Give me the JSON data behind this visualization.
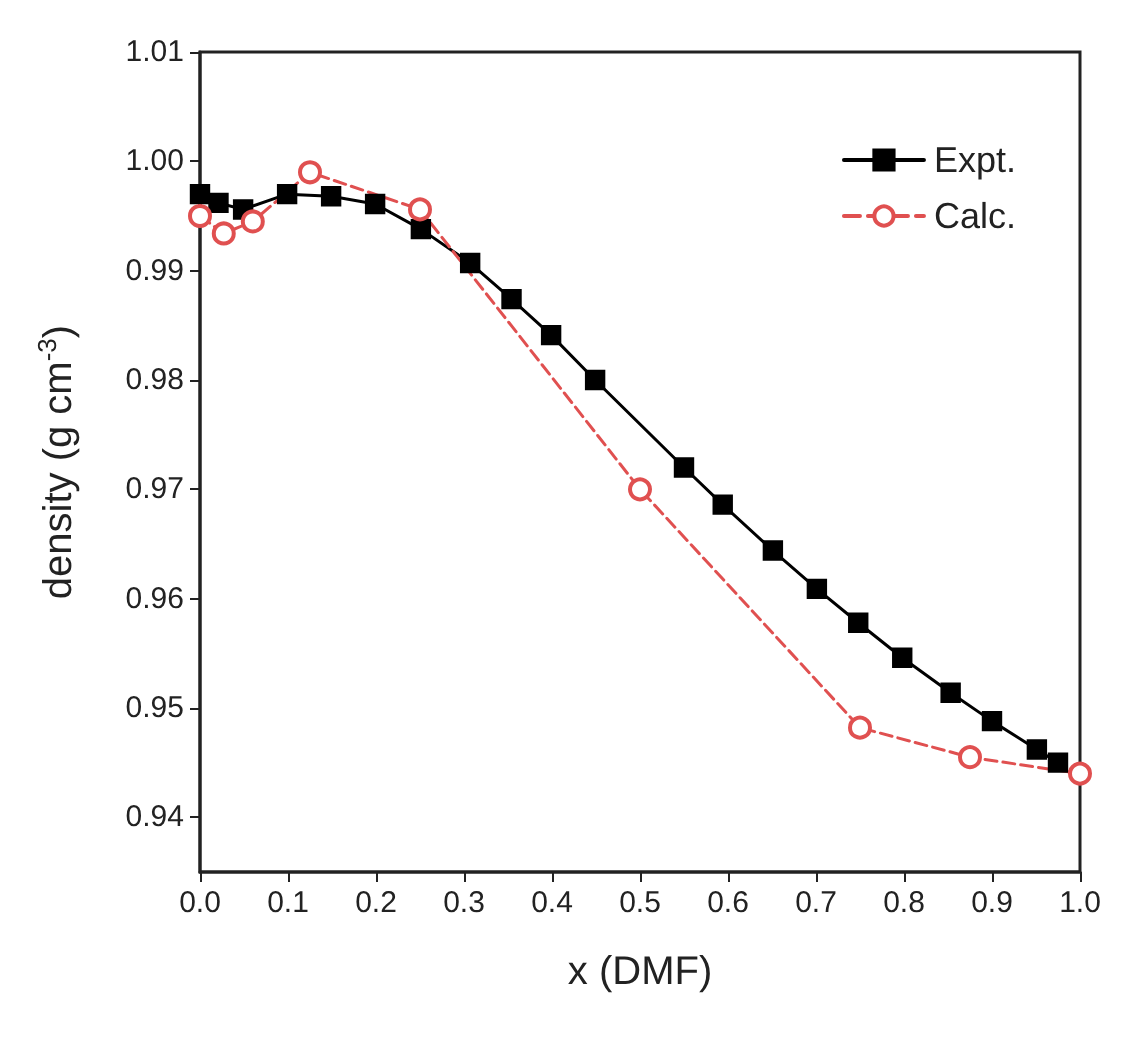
{
  "chart_data": {
    "type": "line",
    "xlabel": "x (DMF)",
    "ylabel": "density (g cm$^{-3}$)",
    "xlim": [
      0,
      1
    ],
    "ylim": [
      0.935,
      1.01
    ],
    "xticks": [
      {
        "value": 0,
        "label": "0.0"
      },
      0.1,
      0.2,
      0.3,
      0.4,
      0.5,
      0.6,
      0.7,
      0.8,
      0.9,
      {
        "value": 1,
        "label": "1.0"
      }
    ],
    "yticks": [
      0.94,
      0.95,
      0.96,
      0.97,
      0.98,
      0.99,
      {
        "value": 1,
        "label": "1.00"
      },
      1.01
    ],
    "grid": false,
    "legend": "top right",
    "series": [
      {
        "name": "Expt.",
        "color": "#000000",
        "marker": "square",
        "line_style": "solid",
        "x": [
          0,
          0.021,
          0.049,
          0.099,
          0.149,
          0.199,
          0.251,
          0.307,
          0.354,
          0.399,
          0.449,
          0.55,
          0.594,
          0.651,
          0.701,
          0.748,
          0.798,
          0.853,
          0.9,
          0.951,
          0.975
        ],
        "values": [
          0.997,
          0.9962,
          0.9956,
          0.997,
          0.9968,
          0.9961,
          0.9938,
          0.9907,
          0.9874,
          0.9841,
          0.98,
          0.972,
          0.9686,
          0.9644,
          0.9609,
          0.9578,
          0.9546,
          0.9514,
          0.9488,
          0.9462,
          0.945
        ]
      },
      {
        "name": "Calc.",
        "color": "#e05050",
        "marker": "circle",
        "line_style": "dashed",
        "x": [
          0,
          0.027,
          0.06,
          0.125,
          0.25,
          0.5,
          0.75,
          0.875,
          1.0
        ],
        "values": [
          0.995,
          0.9934,
          0.9945,
          0.999,
          0.9956,
          0.97,
          0.9482,
          0.9455,
          0.944
        ]
      }
    ]
  }
}
